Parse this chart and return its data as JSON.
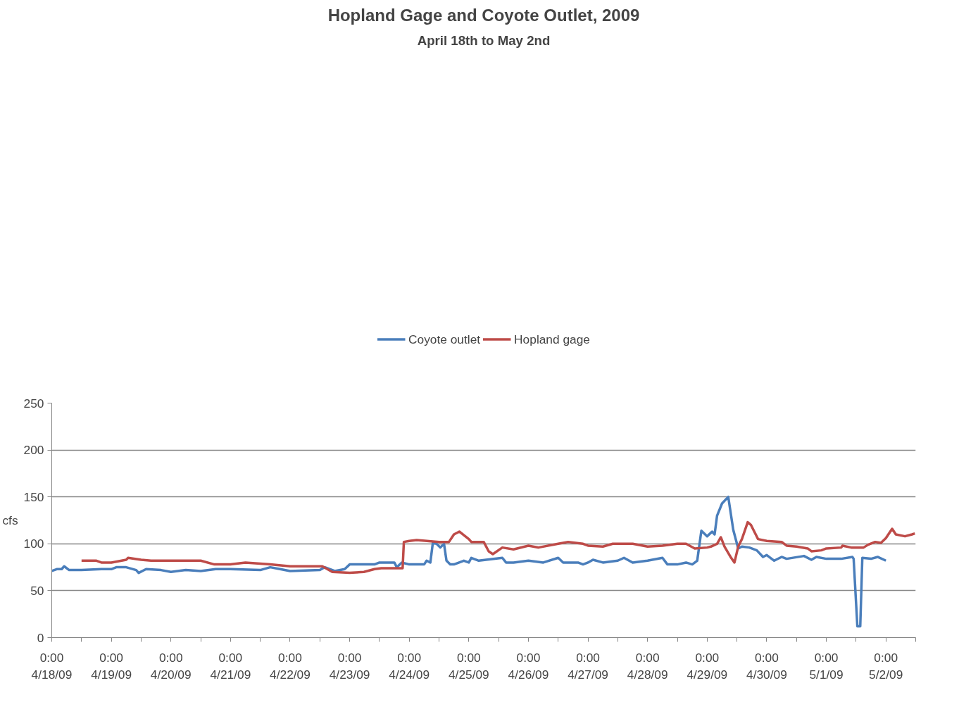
{
  "chart_data": {
    "type": "line",
    "title": "Hopland Gage and Coyote Outlet, 2009",
    "subtitle": "April 18th to May 2nd",
    "ylabel": "cfs",
    "xlim": [
      "2009-04-18T00:00",
      "2009-05-02T12:00"
    ],
    "xticks": [
      {
        "value": "2009-04-18T00:00",
        "label": "0:00\n4/18/09"
      },
      {
        "value": "2009-04-18T12:00",
        "label": null
      },
      {
        "value": "2009-04-19T00:00",
        "label": "0:00\n4/19/09"
      },
      {
        "value": "2009-04-19T12:00",
        "label": null
      },
      {
        "value": "2009-04-20T00:00",
        "label": "0:00\n4/20/09"
      },
      {
        "value": "2009-04-20T12:00",
        "label": null
      },
      {
        "value": "2009-04-21T00:00",
        "label": "0:00\n4/21/09"
      },
      {
        "value": "2009-04-21T12:00",
        "label": null
      },
      {
        "value": "2009-04-22T00:00",
        "label": "0:00\n4/22/09"
      },
      {
        "value": "2009-04-22T12:00",
        "label": null
      },
      {
        "value": "2009-04-23T00:00",
        "label": "0:00\n4/23/09"
      },
      {
        "value": "2009-04-23T12:00",
        "label": null
      },
      {
        "value": "2009-04-24T00:00",
        "label": "0:00\n4/24/09"
      },
      {
        "value": "2009-04-24T12:00",
        "label": null
      },
      {
        "value": "2009-04-25T00:00",
        "label": "0:00\n4/25/09"
      },
      {
        "value": "2009-04-25T12:00",
        "label": null
      },
      {
        "value": "2009-04-26T00:00",
        "label": "0:00\n4/26/09"
      },
      {
        "value": "2009-04-26T12:00",
        "label": null
      },
      {
        "value": "2009-04-27T00:00",
        "label": "0:00\n4/27/09"
      },
      {
        "value": "2009-04-27T12:00",
        "label": null
      },
      {
        "value": "2009-04-28T00:00",
        "label": "0:00\n4/28/09"
      },
      {
        "value": "2009-04-28T12:00",
        "label": null
      },
      {
        "value": "2009-04-29T00:00",
        "label": "0:00\n4/29/09"
      },
      {
        "value": "2009-04-29T12:00",
        "label": null
      },
      {
        "value": "2009-04-30T00:00",
        "label": "0:00\n4/30/09"
      },
      {
        "value": "2009-04-30T12:00",
        "label": null
      },
      {
        "value": "2009-05-01T00:00",
        "label": "0:00\n5/1/09"
      },
      {
        "value": "2009-05-01T12:00",
        "label": null
      },
      {
        "value": "2009-05-02T00:00",
        "label": "0:00\n5/2/09"
      },
      {
        "value": "2009-05-02T12:00",
        "label": null
      }
    ],
    "ylim": [
      0,
      250
    ],
    "yticks": [
      0,
      50,
      100,
      150,
      200,
      250
    ],
    "grid": "y",
    "legend": "top",
    "line_style": "solid",
    "series": [
      {
        "name": "Coyote outlet",
        "color": "#4a7ebb",
        "x": [
          "2009-04-18T00:00",
          "2009-04-18T02:00",
          "2009-04-18T04:00",
          "2009-04-18T05:00",
          "2009-04-18T07:00",
          "2009-04-18T12:00",
          "2009-04-18T20:00",
          "2009-04-19T00:00",
          "2009-04-19T02:00",
          "2009-04-19T06:00",
          "2009-04-19T10:00",
          "2009-04-19T11:00",
          "2009-04-19T14:00",
          "2009-04-19T20:00",
          "2009-04-20T00:00",
          "2009-04-20T06:00",
          "2009-04-20T12:00",
          "2009-04-20T18:00",
          "2009-04-21T00:00",
          "2009-04-21T12:00",
          "2009-04-21T16:00",
          "2009-04-21T20:00",
          "2009-04-22T00:00",
          "2009-04-22T12:00",
          "2009-04-22T14:00",
          "2009-04-22T18:00",
          "2009-04-22T22:00",
          "2009-04-23T00:00",
          "2009-04-23T10:00",
          "2009-04-23T12:00",
          "2009-04-23T18:00",
          "2009-04-23T19:00",
          "2009-04-23T21:00",
          "2009-04-24T00:00",
          "2009-04-24T06:00",
          "2009-04-24T07:00",
          "2009-04-24T08:30",
          "2009-04-24T09:30",
          "2009-04-24T11:00",
          "2009-04-24T12:30",
          "2009-04-24T14:00",
          "2009-04-24T15:00",
          "2009-04-24T16:30",
          "2009-04-24T18:00",
          "2009-04-24T22:00",
          "2009-04-25T00:00",
          "2009-04-25T01:00",
          "2009-04-25T04:00",
          "2009-04-25T13:30",
          "2009-04-25T15:00",
          "2009-04-25T18:00",
          "2009-04-26T00:00",
          "2009-04-26T06:00",
          "2009-04-26T12:00",
          "2009-04-26T14:00",
          "2009-04-26T20:00",
          "2009-04-26T22:00",
          "2009-04-27T00:00",
          "2009-04-27T02:00",
          "2009-04-27T06:00",
          "2009-04-27T12:00",
          "2009-04-27T14:30",
          "2009-04-27T18:00",
          "2009-04-28T00:00",
          "2009-04-28T06:00",
          "2009-04-28T08:00",
          "2009-04-28T12:00",
          "2009-04-28T15:30",
          "2009-04-28T18:00",
          "2009-04-28T20:00",
          "2009-04-28T21:40",
          "2009-04-29T00:00",
          "2009-04-29T02:00",
          "2009-04-29T03:00",
          "2009-04-29T04:00",
          "2009-04-29T06:00",
          "2009-04-29T08:30",
          "2009-04-29T10:30",
          "2009-04-29T12:30",
          "2009-04-29T14:00",
          "2009-04-29T17:00",
          "2009-04-29T20:00",
          "2009-04-29T22:30",
          "2009-04-30T00:00",
          "2009-04-30T03:00",
          "2009-04-30T06:00",
          "2009-04-30T08:00",
          "2009-04-30T15:00",
          "2009-04-30T18:00",
          "2009-04-30T20:00",
          "2009-05-01T00:00",
          "2009-05-01T06:00",
          "2009-05-01T10:30",
          "2009-05-01T11:00",
          "2009-05-01T12:30",
          "2009-05-01T13:40",
          "2009-05-01T14:30",
          "2009-05-01T18:00",
          "2009-05-01T20:40",
          "2009-05-02T00:00"
        ],
        "values": [
          71,
          73,
          73,
          76,
          72,
          72,
          73,
          73,
          75,
          75,
          72,
          69,
          73,
          72,
          70,
          72,
          71,
          73,
          73,
          72,
          75,
          73,
          71,
          72,
          75,
          71,
          73,
          78,
          78,
          80,
          80,
          75,
          80,
          78,
          78,
          82,
          80,
          101,
          100,
          96,
          100,
          82,
          78,
          78,
          82,
          80,
          85,
          82,
          85,
          80,
          80,
          82,
          80,
          85,
          80,
          80,
          78,
          80,
          83,
          80,
          82,
          85,
          80,
          82,
          85,
          78,
          78,
          80,
          78,
          82,
          114,
          108,
          113,
          110,
          130,
          143,
          150,
          115,
          95,
          97,
          96,
          93,
          86,
          88,
          82,
          86,
          84,
          87,
          83,
          86,
          84,
          84,
          86,
          84,
          12,
          12,
          85,
          84,
          86,
          82
        ]
      },
      {
        "name": "Hopland gage",
        "color": "#be4b48",
        "x": [
          "2009-04-18T12:00",
          "2009-04-18T18:00",
          "2009-04-18T20:00",
          "2009-04-19T00:00",
          "2009-04-19T06:00",
          "2009-04-19T06:45",
          "2009-04-19T12:00",
          "2009-04-19T16:00",
          "2009-04-20T00:00",
          "2009-04-20T12:00",
          "2009-04-20T17:30",
          "2009-04-21T00:00",
          "2009-04-21T06:00",
          "2009-04-21T16:00",
          "2009-04-22T00:00",
          "2009-04-22T13:00",
          "2009-04-22T17:00",
          "2009-04-23T00:00",
          "2009-04-23T05:45",
          "2009-04-23T10:00",
          "2009-04-23T12:45",
          "2009-04-23T21:20",
          "2009-04-23T21:50",
          "2009-04-24T00:00",
          "2009-04-24T03:00",
          "2009-04-24T12:00",
          "2009-04-24T16:00",
          "2009-04-24T18:00",
          "2009-04-24T20:10",
          "2009-04-25T00:00",
          "2009-04-25T01:00",
          "2009-04-25T06:00",
          "2009-04-25T08:00",
          "2009-04-25T09:40",
          "2009-04-25T13:30",
          "2009-04-25T18:00",
          "2009-04-26T00:00",
          "2009-04-26T04:00",
          "2009-04-26T12:00",
          "2009-04-26T16:00",
          "2009-04-26T22:00",
          "2009-04-27T00:00",
          "2009-04-27T06:00",
          "2009-04-27T10:00",
          "2009-04-27T18:00",
          "2009-04-28T00:00",
          "2009-04-28T06:00",
          "2009-04-28T12:00",
          "2009-04-28T15:30",
          "2009-04-28T19:00",
          "2009-04-29T00:00",
          "2009-04-29T01:30",
          "2009-04-29T04:00",
          "2009-04-29T05:30",
          "2009-04-29T07:00",
          "2009-04-29T09:40",
          "2009-04-29T11:00",
          "2009-04-29T12:30",
          "2009-04-29T14:00",
          "2009-04-29T16:20",
          "2009-04-29T17:40",
          "2009-04-29T20:30",
          "2009-04-30T00:00",
          "2009-04-30T06:00",
          "2009-04-30T08:00",
          "2009-04-30T12:00",
          "2009-04-30T16:30",
          "2009-04-30T18:00",
          "2009-04-30T22:00",
          "2009-05-01T00:00",
          "2009-05-01T06:00",
          "2009-05-01T06:30",
          "2009-05-01T10:00",
          "2009-05-01T15:00",
          "2009-05-01T16:50",
          "2009-05-01T19:40",
          "2009-05-01T22:00",
          "2009-05-02T00:00",
          "2009-05-02T02:30",
          "2009-05-02T04:00",
          "2009-05-02T07:40",
          "2009-05-02T10:30",
          "2009-05-02T11:40"
        ],
        "values": [
          82,
          82,
          80,
          80,
          83,
          85,
          83,
          82,
          82,
          82,
          78,
          78,
          80,
          78,
          76,
          76,
          70,
          69,
          70,
          73,
          74,
          74,
          102,
          103,
          104,
          102,
          102,
          110,
          113,
          105,
          102,
          102,
          92,
          89,
          96,
          94,
          98,
          96,
          100,
          102,
          100,
          98,
          97,
          100,
          100,
          97,
          98,
          100,
          100,
          95,
          96,
          97,
          100,
          107,
          97,
          85,
          80,
          97,
          105,
          123,
          120,
          105,
          103,
          102,
          98,
          97,
          95,
          92,
          93,
          95,
          96,
          98,
          96,
          96,
          99,
          102,
          101,
          106,
          116,
          110,
          108,
          110,
          111
        ]
      }
    ]
  }
}
